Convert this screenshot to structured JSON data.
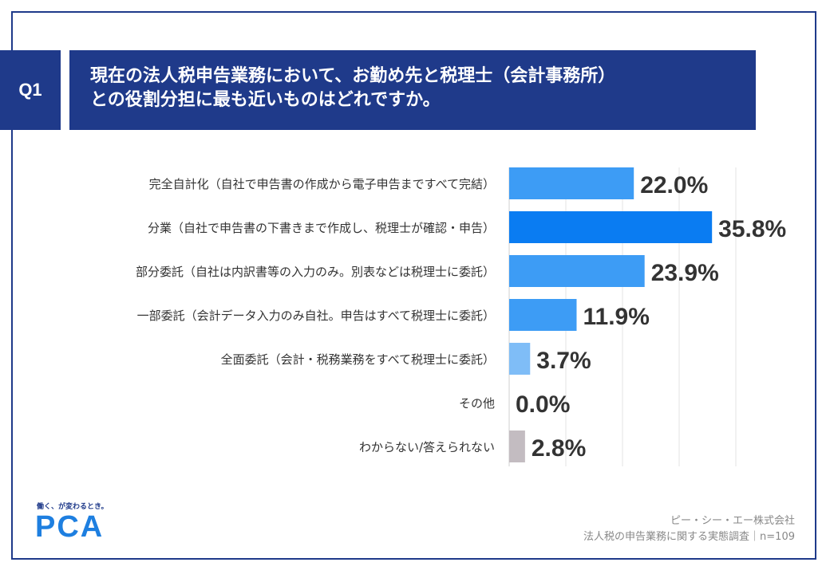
{
  "question": {
    "badge": "Q1",
    "line1": "現在の法人税申告業務において、お勤め先と税理士（会計事務所）",
    "line2": "との役割分担に最も近いものはどれですか。"
  },
  "colors": {
    "navy": "#1f3a8a",
    "bar_top": "#0a7cf2",
    "bar_blue": "#3d9cf5",
    "bar_light": "#7fbdf7",
    "bar_gray": "#c3bcc1"
  },
  "chart_data": {
    "type": "bar",
    "orientation": "horizontal",
    "categories": [
      "完全自計化（自社で申告書の作成から電子申告まですべて完結）",
      "分業（自社で申告書の下書きまで作成し、税理士が確認・申告）",
      "部分委託（自社は内訳書等の入力のみ。別表などは税理士に委託）",
      "一部委託（会計データ入力のみ自社。申告はすべて税理士に委託）",
      "全面委託（会計・税務業務をすべて税理士に委託）",
      "その他",
      "わからない/答えられない"
    ],
    "values": [
      22.0,
      35.8,
      23.9,
      11.9,
      3.7,
      0.0,
      2.8
    ],
    "data_labels": [
      "22.0%",
      "35.8%",
      "23.9%",
      "11.9%",
      "3.7%",
      "0.0%",
      "2.8%"
    ],
    "xlim": [
      0,
      40
    ],
    "grid": true,
    "unit": "%"
  },
  "footer": {
    "tagline": "働く、が変わるとき。",
    "logo": "PCA",
    "company": "ピー・シー・エー株式会社",
    "survey": "法人税の申告業務に関する実態調査｜n=109"
  }
}
